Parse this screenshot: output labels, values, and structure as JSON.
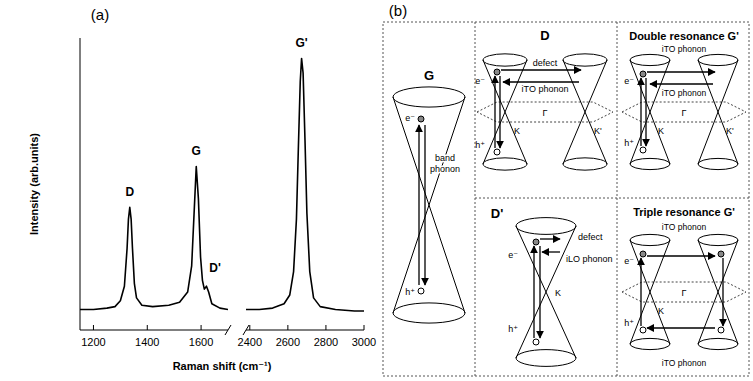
{
  "chart_data": {
    "type": "line",
    "panel_label": "(a)",
    "x_label": "Raman shift (cm⁻¹)",
    "y_label": "Intensity (arb.units)",
    "color": "#000000",
    "tick_labels": "x",
    "grid": false,
    "ylim": [
      0,
      1
    ],
    "segments": [
      {
        "xlim": [
          1150,
          1700
        ],
        "xticks": [
          1200,
          1400,
          1600
        ],
        "x": [
          1150,
          1200,
          1250,
          1280,
          1300,
          1315,
          1325,
          1330,
          1335,
          1340,
          1345,
          1352,
          1360,
          1380,
          1420,
          1480,
          1520,
          1550,
          1565,
          1575,
          1582,
          1590,
          1598,
          1605,
          1612,
          1620,
          1628,
          1640,
          1670,
          1700
        ],
        "values": [
          0.07,
          0.07,
          0.075,
          0.08,
          0.1,
          0.15,
          0.28,
          0.38,
          0.42,
          0.38,
          0.28,
          0.16,
          0.11,
          0.085,
          0.08,
          0.085,
          0.095,
          0.13,
          0.22,
          0.42,
          0.56,
          0.45,
          0.25,
          0.17,
          0.14,
          0.15,
          0.13,
          0.09,
          0.075,
          0.07
        ]
      },
      {
        "xlim": [
          2380,
          3000
        ],
        "xticks": [
          2400,
          2600,
          2800,
          3000
        ],
        "x": [
          2380,
          2450,
          2520,
          2580,
          2610,
          2630,
          2645,
          2655,
          2665,
          2672,
          2680,
          2690,
          2700,
          2715,
          2735,
          2770,
          2850,
          2950,
          3000
        ],
        "values": [
          0.07,
          0.07,
          0.075,
          0.09,
          0.12,
          0.2,
          0.38,
          0.62,
          0.85,
          0.93,
          0.88,
          0.65,
          0.4,
          0.2,
          0.11,
          0.08,
          0.07,
          0.065,
          0.065
        ]
      }
    ],
    "annotations": [
      {
        "text": "D",
        "x": 1335,
        "y": 0.45
      },
      {
        "text": "G",
        "x": 1582,
        "y": 0.59
      },
      {
        "text": "D'",
        "x": 1652,
        "y": 0.19
      },
      {
        "text": "G'",
        "x": 2672,
        "y": 0.96
      }
    ]
  },
  "diagram": {
    "label": "(b)",
    "panels": [
      {
        "title": "G",
        "electron": "e⁻",
        "hole": "h⁺",
        "phonon": "band phonon"
      },
      {
        "title": "D",
        "electron": "e⁻",
        "hole": "h⁺",
        "defect": "defect",
        "phonon": "iTO phonon",
        "k": "K",
        "k2": "K'",
        "gamma": "Γ"
      },
      {
        "title": "Double resonance G'",
        "electron": "e⁻",
        "hole": "h⁺",
        "phonon": "iTO phonon",
        "phonon2": "iTO phonon",
        "k": "K",
        "k2": "K'",
        "gamma": "Γ"
      },
      {
        "title": "D'",
        "electron": "e⁻",
        "hole": "h⁺",
        "defect": "defect",
        "phonon": "iLO phonon",
        "k": "K"
      },
      {
        "title": "Triple resonance G'",
        "electron": "e⁻",
        "hole": "h⁺",
        "phonon": "iTO phonon",
        "phonon2": "iTO phonon",
        "k": "K",
        "gamma": "Γ"
      }
    ]
  }
}
